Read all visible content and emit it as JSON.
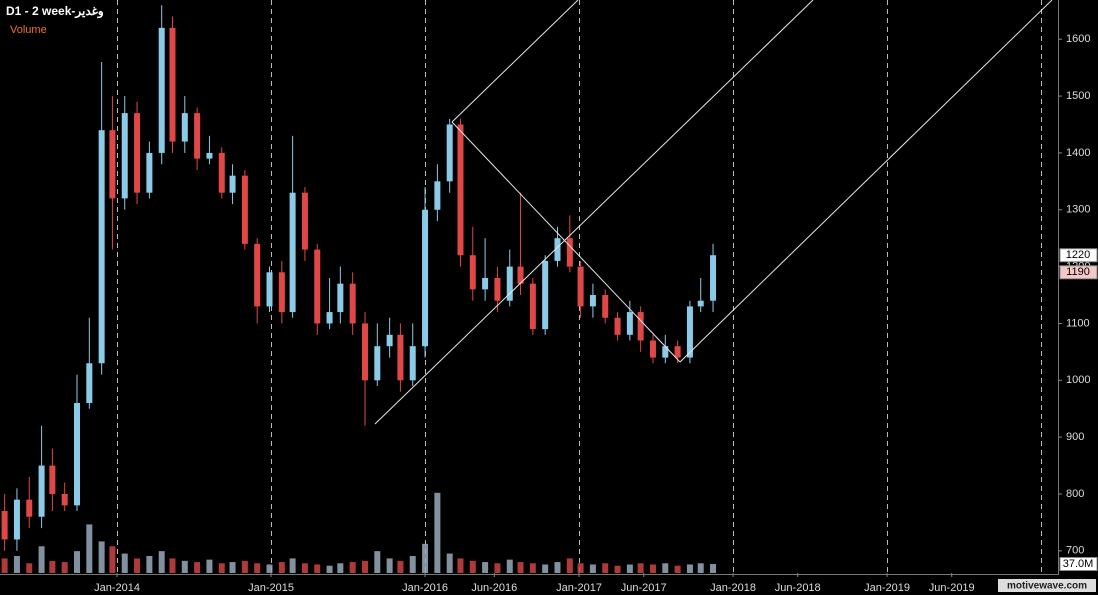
{
  "chart_data": {
    "type": "candlestick",
    "title": "D1 - 2 week-وغدير",
    "subtitle": "Volume",
    "watermark": "motivewave.com",
    "up_color": "#8ccbe8",
    "down_color": "#e04848",
    "x": [
      2013.27,
      2013.35,
      2013.43,
      2013.51,
      2013.58,
      2013.66,
      2013.74,
      2013.82,
      2013.9,
      2013.97,
      2014.05,
      2014.13,
      2014.21,
      2014.29,
      2014.36,
      2014.44,
      2014.52,
      2014.6,
      2014.68,
      2014.75,
      2014.83,
      2014.91,
      2014.99,
      2015.07,
      2015.14,
      2015.22,
      2015.3,
      2015.38,
      2015.45,
      2015.53,
      2015.61,
      2015.69,
      2015.77,
      2015.84,
      2015.92,
      2016.0,
      2016.08,
      2016.16,
      2016.23,
      2016.31,
      2016.39,
      2016.47,
      2016.55,
      2016.62,
      2016.7,
      2016.78,
      2016.86,
      2016.94,
      2017.01,
      2017.09,
      2017.17,
      2017.25,
      2017.33,
      2017.4,
      2017.48,
      2017.56,
      2017.64,
      2017.72,
      2017.79,
      2017.87
    ],
    "open": [
      770,
      720,
      790,
      760,
      850,
      800,
      780,
      960,
      1030,
      1440,
      1320,
      1470,
      1330,
      1400,
      1620,
      1420,
      1470,
      1390,
      1400,
      1330,
      1360,
      1240,
      1130,
      1190,
      1120,
      1330,
      1230,
      1100,
      1120,
      1170,
      1100,
      1000,
      1060,
      1080,
      1000,
      1060,
      1300,
      1350,
      1450,
      1220,
      1160,
      1180,
      1140,
      1200,
      1170,
      1090,
      1210,
      1250,
      1200,
      1130,
      1150,
      1110,
      1080,
      1120,
      1070,
      1040,
      1060,
      1040,
      1130,
      1140
    ],
    "high": [
      800,
      810,
      830,
      920,
      880,
      820,
      1010,
      1110,
      1560,
      1500,
      1500,
      1490,
      1420,
      1660,
      1640,
      1500,
      1480,
      1430,
      1410,
      1380,
      1370,
      1250,
      1200,
      1210,
      1430,
      1340,
      1240,
      1180,
      1200,
      1190,
      1120,
      1100,
      1110,
      1100,
      1100,
      1340,
      1380,
      1460,
      1460,
      1270,
      1250,
      1200,
      1230,
      1330,
      1180,
      1220,
      1270,
      1290,
      1210,
      1170,
      1160,
      1120,
      1140,
      1130,
      1080,
      1080,
      1070,
      1140,
      1180,
      1240
    ],
    "low": [
      700,
      700,
      740,
      740,
      770,
      770,
      770,
      950,
      1010,
      1230,
      1300,
      1310,
      1320,
      1380,
      1400,
      1400,
      1370,
      1380,
      1320,
      1310,
      1230,
      1100,
      1120,
      1100,
      1110,
      1210,
      1080,
      1090,
      1100,
      1080,
      920,
      990,
      1040,
      980,
      990,
      1040,
      1280,
      1330,
      1200,
      1140,
      1140,
      1120,
      1130,
      1150,
      1080,
      1080,
      1200,
      1190,
      1110,
      1110,
      1100,
      1070,
      1070,
      1050,
      1030,
      1030,
      1030,
      1030,
      1120,
      1120
    ],
    "close": [
      720,
      790,
      760,
      850,
      800,
      780,
      960,
      1030,
      1440,
      1320,
      1470,
      1330,
      1400,
      1620,
      1420,
      1470,
      1390,
      1400,
      1330,
      1360,
      1240,
      1130,
      1190,
      1120,
      1330,
      1230,
      1100,
      1120,
      1170,
      1100,
      1000,
      1060,
      1080,
      1000,
      1060,
      1300,
      1350,
      1450,
      1220,
      1160,
      1180,
      1140,
      1200,
      1170,
      1090,
      1210,
      1250,
      1200,
      1130,
      1150,
      1110,
      1080,
      1120,
      1070,
      1040,
      1060,
      1040,
      1130,
      1140,
      1220
    ],
    "volume": [
      60,
      70,
      40,
      110,
      50,
      45,
      90,
      200,
      130,
      110,
      80,
      60,
      70,
      90,
      60,
      50,
      45,
      55,
      40,
      45,
      50,
      40,
      35,
      45,
      60,
      40,
      35,
      30,
      40,
      45,
      50,
      90,
      60,
      50,
      70,
      120,
      330,
      80,
      60,
      50,
      45,
      40,
      55,
      45,
      40,
      35,
      45,
      60,
      40,
      35,
      40,
      30,
      35,
      40,
      35,
      40,
      30,
      35,
      40,
      37
    ],
    "volume_label": "37.0M",
    "ylim": [
      661,
      1669
    ],
    "yticks": [
      700,
      800,
      900,
      1000,
      1100,
      1200,
      1300,
      1400,
      1500,
      1600
    ],
    "xlim": [
      2013.24,
      2020.11
    ],
    "xticks": [
      {
        "value": 2014.0,
        "label": "Jan-2014"
      },
      {
        "value": 2015.0,
        "label": "Jan-2015"
      },
      {
        "value": 2016.0,
        "label": "Jan-2016"
      },
      {
        "value": 2016.45,
        "label": "Jun-2016"
      },
      {
        "value": 2017.0,
        "label": "Jan-2017"
      },
      {
        "value": 2017.42,
        "label": "Jun-2017"
      },
      {
        "value": 2018.0,
        "label": "Jan-2018"
      },
      {
        "value": 2018.42,
        "label": "Jun-2018"
      },
      {
        "value": 2019.0,
        "label": "Jan-2019"
      },
      {
        "value": 2019.42,
        "label": "Jun-2019"
      }
    ],
    "grid_x": [
      2014,
      2015,
      2016,
      2017,
      2018,
      2019,
      2020
    ],
    "price_labels": [
      1220,
      1190
    ]
  }
}
